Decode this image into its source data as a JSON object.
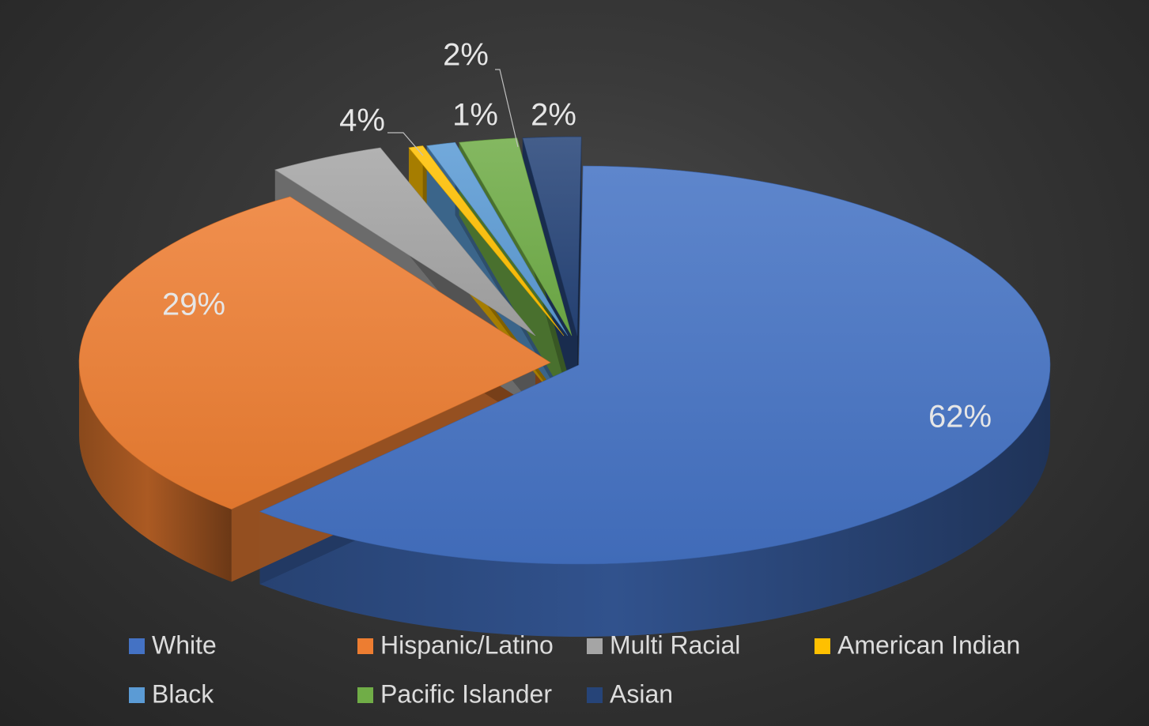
{
  "chart_data": {
    "type": "pie",
    "style": "3d-exploded",
    "categories": [
      "White",
      "Hispanic/Latino",
      "Multi Racial",
      "American Indian",
      "Black",
      "Pacific Islander",
      "Asian"
    ],
    "values": [
      62,
      29,
      4,
      0.5,
      1,
      2,
      2
    ],
    "data_labels": [
      "62%",
      "29%",
      "4%",
      "",
      "1%",
      "2%",
      "2%"
    ],
    "colors": [
      "#4472c4",
      "#ed7d31",
      "#a5a5a5",
      "#ffc000",
      "#5b9bd5",
      "#70ad47",
      "#264478"
    ],
    "legend_position": "bottom",
    "title": ""
  }
}
